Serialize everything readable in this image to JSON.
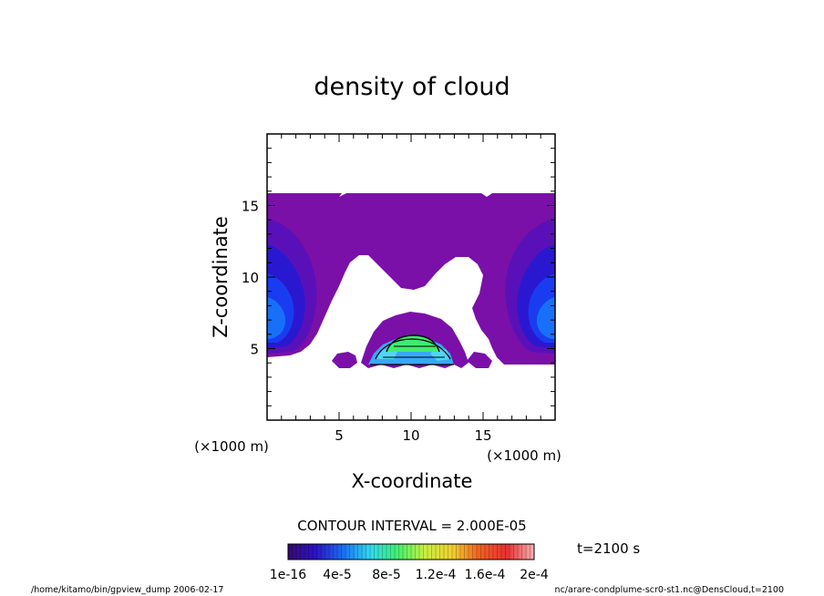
{
  "chart_data": {
    "type": "heatmap",
    "title": "density of cloud",
    "xlabel": "X-coordinate",
    "ylabel": "Z-coordinate",
    "x_unit": "(×1000 m)",
    "y_unit": "(×1000 m)",
    "xlim": [
      0,
      20
    ],
    "ylim": [
      0,
      20
    ],
    "x_ticks": [
      5,
      10,
      15
    ],
    "y_ticks": [
      5,
      10,
      15
    ],
    "contour_interval_text": "CONTOUR INTERVAL = 2.000E-05",
    "time_text": "t=2100 s",
    "colorbar": {
      "tick_labels": [
        "1e-16",
        "4e-5",
        "8e-5",
        "1.2e-4",
        "1.6e-4",
        "2e-4"
      ],
      "stops": [
        "#3a0a6e",
        "#2a12c8",
        "#1a6ef2",
        "#30d8f0",
        "#40f070",
        "#c8f040",
        "#f0d030",
        "#f06020",
        "#e83030",
        "#f6b0b0"
      ]
    },
    "colors": {
      "background_level": "#7a10a8",
      "level2": "#5a10b8",
      "level3": "#2a18d0",
      "level4": "#1a3cf0",
      "level5": "#1870f8",
      "core_blue": "#38a8f8",
      "core_cyan": "#50d8f0",
      "core_green": "#40ec70"
    }
  },
  "footer": {
    "left": "/home/kitamo/bin/gpview_dump  2006-02-17",
    "right": "nc/arare-condplume-scr0-st1.nc@DensCloud,t=2100"
  }
}
